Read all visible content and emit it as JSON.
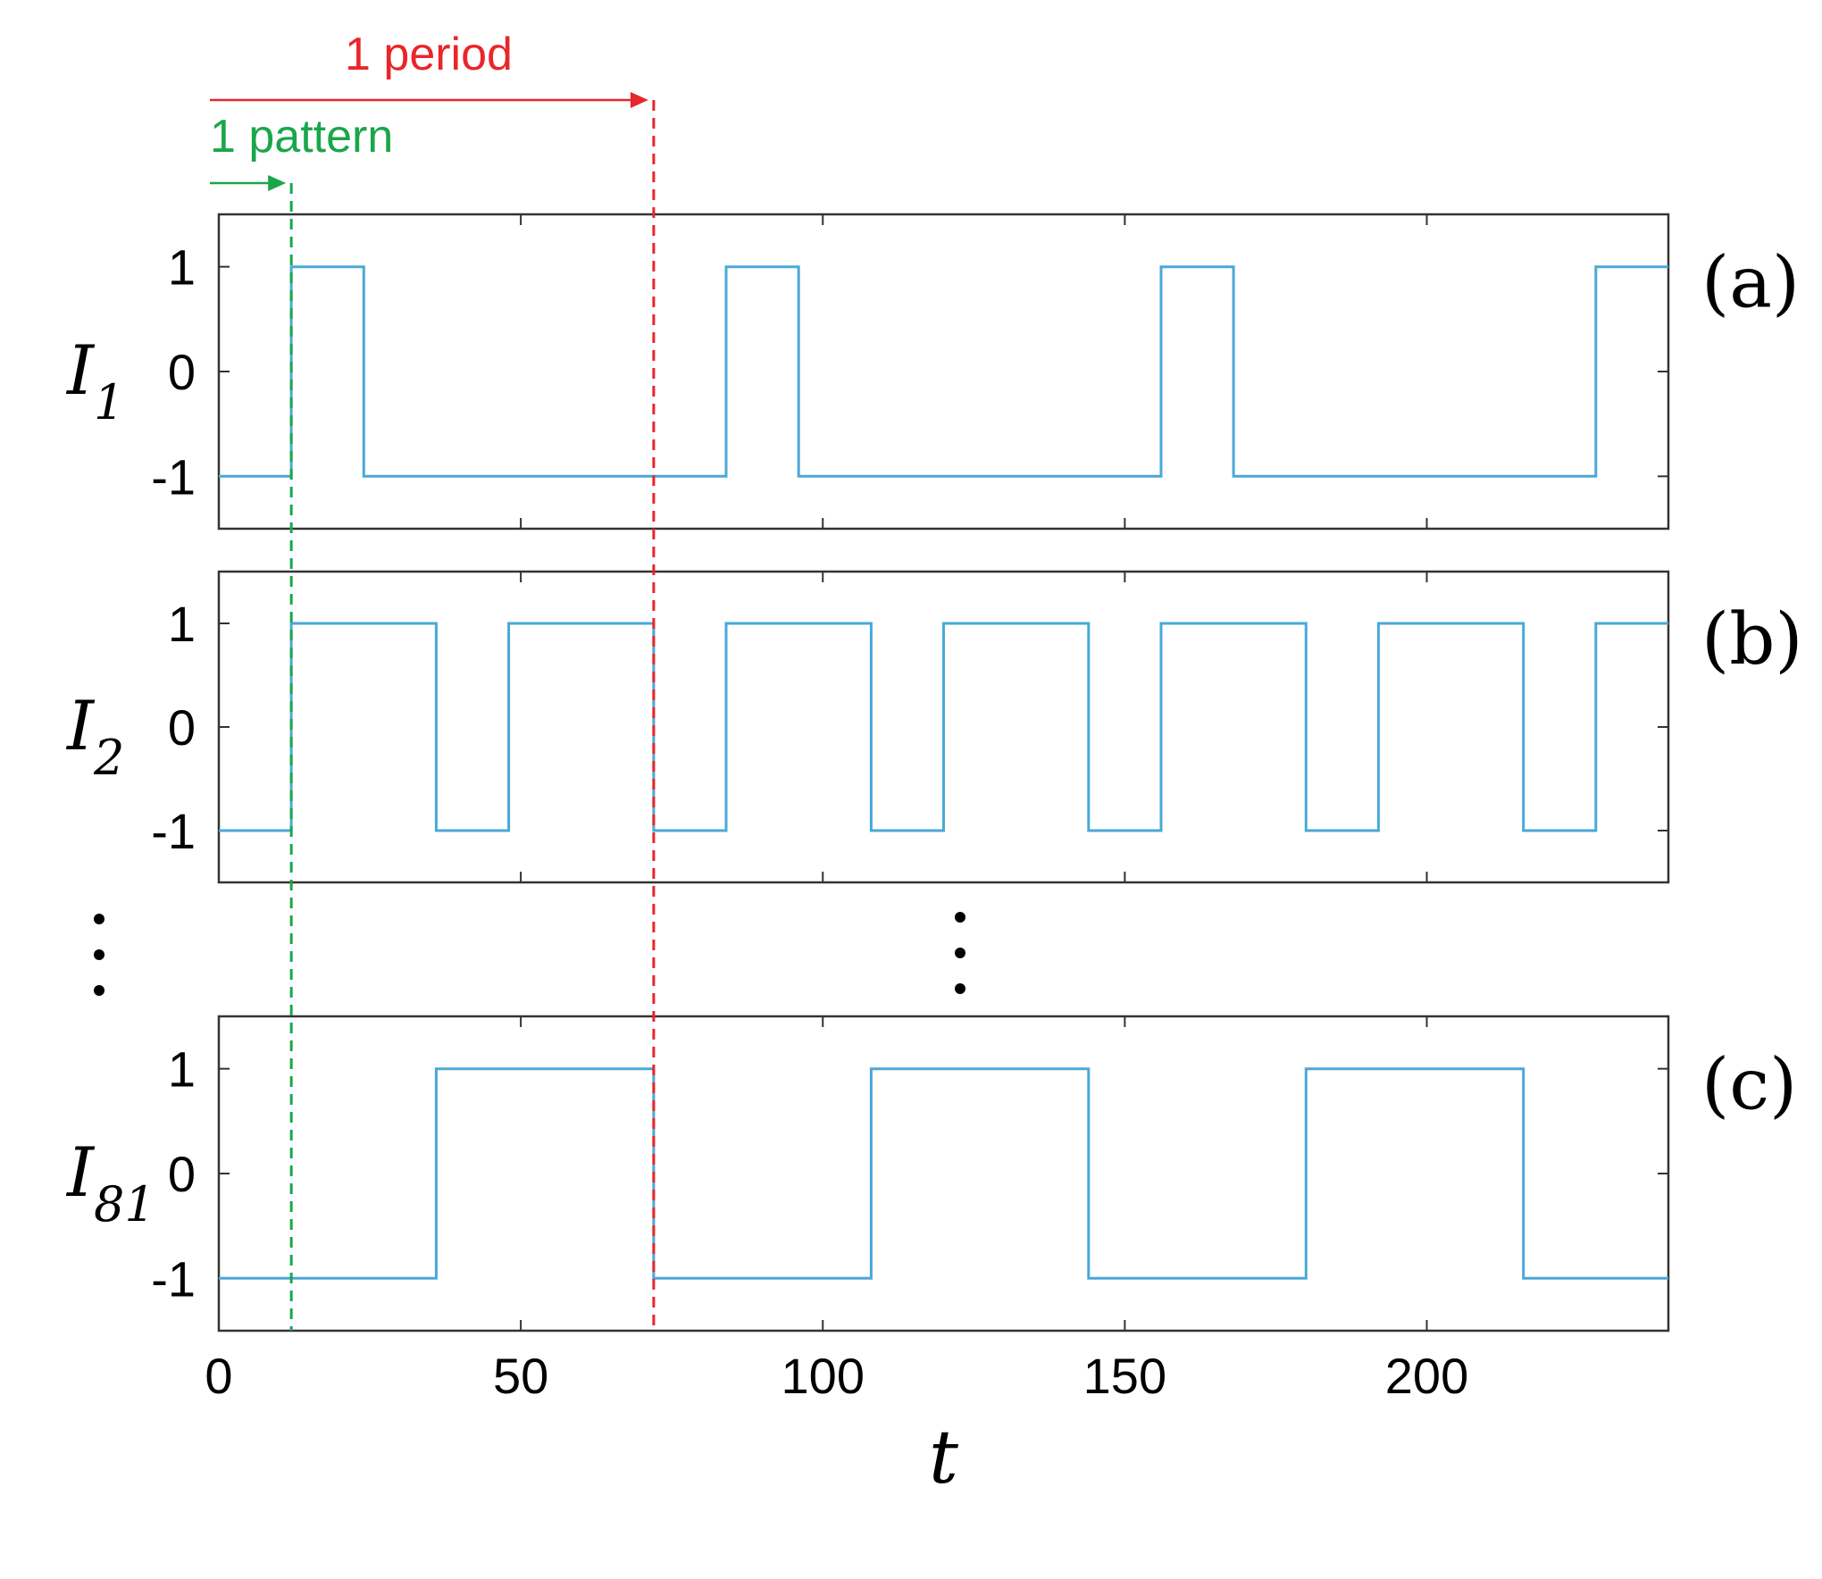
{
  "chart_data": {
    "type": "line",
    "step": true,
    "xlabel": "t",
    "xlim": [
      0,
      240
    ],
    "xticks": [
      0,
      50,
      100,
      150,
      200
    ],
    "ylim": [
      -1.5,
      1.5
    ],
    "yticks": [
      -1,
      0,
      1
    ],
    "ytick_labels": [
      "-1",
      "0",
      "1"
    ],
    "line_color": "#4aa8d8",
    "grid": false,
    "panels": [
      {
        "id": "a",
        "panel_label": "(a)",
        "ylabel_main": "I",
        "ylabel_sub": "1",
        "x": [
          0,
          12,
          12,
          24,
          24,
          84,
          84,
          96,
          96,
          156,
          156,
          168,
          168,
          228,
          228,
          240
        ],
        "y": [
          -1,
          -1,
          1,
          1,
          -1,
          -1,
          1,
          1,
          -1,
          -1,
          1,
          1,
          -1,
          -1,
          1,
          1
        ]
      },
      {
        "id": "b",
        "panel_label": "(b)",
        "ylabel_main": "I",
        "ylabel_sub": "2",
        "x": [
          0,
          12,
          12,
          36,
          36,
          48,
          48,
          72,
          72,
          84,
          84,
          108,
          108,
          120,
          120,
          144,
          144,
          156,
          156,
          180,
          180,
          192,
          192,
          216,
          216,
          228,
          228,
          240
        ],
        "y": [
          -1,
          -1,
          1,
          1,
          -1,
          -1,
          1,
          1,
          -1,
          -1,
          1,
          1,
          -1,
          -1,
          1,
          1,
          -1,
          -1,
          1,
          1,
          -1,
          -1,
          1,
          1,
          -1,
          -1,
          1,
          1
        ]
      },
      {
        "id": "c",
        "panel_label": "(c)",
        "ylabel_main": "I",
        "ylabel_sub": "81",
        "x": [
          0,
          36,
          36,
          72,
          72,
          108,
          108,
          144,
          144,
          180,
          180,
          216,
          216,
          240
        ],
        "y": [
          -1,
          -1,
          1,
          1,
          -1,
          -1,
          1,
          1,
          -1,
          -1,
          1,
          1,
          -1,
          -1
        ]
      }
    ],
    "annotations": [
      {
        "id": "period",
        "text": "1 period",
        "color": "#e8262b",
        "x_start": 0,
        "x_end": 72,
        "vline_x": 72
      },
      {
        "id": "pattern",
        "text": "1 pattern",
        "color": "#1aa64a",
        "x_start": 0,
        "x_end": 12,
        "vline_x": 12
      }
    ]
  }
}
